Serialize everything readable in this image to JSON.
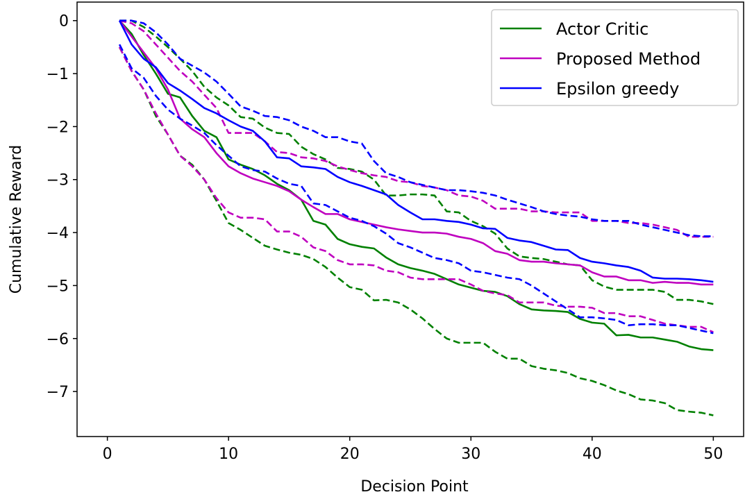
{
  "chart_data": {
    "type": "line",
    "title": "",
    "xlabel": "Decision Point",
    "ylabel": "Cumulative Reward",
    "xlim": [
      -2.5,
      52.5
    ],
    "ylim": [
      -7.85,
      0.35
    ],
    "x_ticks": [
      0,
      10,
      20,
      30,
      40,
      50
    ],
    "y_ticks": [
      0,
      -1,
      -2,
      -3,
      -4,
      -5,
      -6,
      -7
    ],
    "x_tick_labels": [
      "0",
      "10",
      "20",
      "30",
      "40",
      "50"
    ],
    "y_tick_labels": [
      "0",
      "−1",
      "−2",
      "−3",
      "−4",
      "−5",
      "−6",
      "−7"
    ],
    "grid": false,
    "legend_position": "top-right",
    "colors": {
      "actor_critic": "#008000",
      "proposed_method": "#bf00bf",
      "epsilon_greedy": "#0000ff",
      "axes": "#000000"
    },
    "x": [
      1,
      2,
      3,
      4,
      5,
      6,
      7,
      8,
      9,
      10,
      11,
      12,
      13,
      14,
      15,
      16,
      17,
      18,
      19,
      20,
      21,
      22,
      23,
      24,
      25,
      26,
      27,
      28,
      29,
      30,
      31,
      32,
      33,
      34,
      35,
      36,
      37,
      38,
      39,
      40,
      41,
      42,
      43,
      44,
      45,
      46,
      47,
      48,
      49,
      50
    ],
    "series": [
      {
        "name": "Actor Critic",
        "color_key": "actor_critic",
        "style": "solid",
        "legend": true,
        "values": [
          0,
          -0.25,
          -0.65,
          -1.0,
          -1.38,
          -1.45,
          -1.8,
          -2.08,
          -2.2,
          -2.62,
          -2.72,
          -2.8,
          -2.92,
          -3.08,
          -3.2,
          -3.38,
          -3.78,
          -3.85,
          -4.12,
          -4.22,
          -4.27,
          -4.3,
          -4.47,
          -4.6,
          -4.67,
          -4.72,
          -4.78,
          -4.88,
          -4.98,
          -5.04,
          -5.1,
          -5.12,
          -5.2,
          -5.35,
          -5.45,
          -5.47,
          -5.48,
          -5.5,
          -5.63,
          -5.7,
          -5.72,
          -5.94,
          -5.93,
          -5.98,
          -5.98,
          -6.02,
          -6.06,
          -6.15,
          -6.2,
          -6.22
        ]
      },
      {
        "name": "",
        "color_key": "actor_critic",
        "style": "dashed",
        "legend": false,
        "values": [
          0,
          0,
          -0.12,
          -0.3,
          -0.5,
          -0.72,
          -0.95,
          -1.25,
          -1.45,
          -1.6,
          -1.82,
          -1.85,
          -2.02,
          -2.12,
          -2.14,
          -2.38,
          -2.52,
          -2.62,
          -2.78,
          -2.8,
          -2.85,
          -3.0,
          -3.3,
          -3.3,
          -3.28,
          -3.28,
          -3.3,
          -3.6,
          -3.62,
          -3.78,
          -3.88,
          -4.02,
          -4.3,
          -4.45,
          -4.48,
          -4.5,
          -4.55,
          -4.6,
          -4.62,
          -4.9,
          -5.02,
          -5.08,
          -5.08,
          -5.08,
          -5.08,
          -5.12,
          -5.27,
          -5.27,
          -5.3,
          -5.35
        ]
      },
      {
        "name": "",
        "color_key": "actor_critic",
        "style": "dashed",
        "legend": false,
        "values": [
          -0.5,
          -0.95,
          -1.3,
          -1.8,
          -2.15,
          -2.55,
          -2.72,
          -3.0,
          -3.4,
          -3.82,
          -3.95,
          -4.1,
          -4.25,
          -4.32,
          -4.38,
          -4.42,
          -4.5,
          -4.65,
          -4.85,
          -5.03,
          -5.08,
          -5.28,
          -5.27,
          -5.32,
          -5.45,
          -5.62,
          -5.82,
          -6.0,
          -6.08,
          -6.08,
          -6.08,
          -6.25,
          -6.38,
          -6.38,
          -6.52,
          -6.57,
          -6.6,
          -6.65,
          -6.75,
          -6.8,
          -6.88,
          -6.98,
          -7.05,
          -7.15,
          -7.17,
          -7.22,
          -7.35,
          -7.38,
          -7.4,
          -7.45
        ]
      },
      {
        "name": "Proposed Method",
        "color_key": "proposed_method",
        "style": "solid",
        "legend": true,
        "values": [
          0,
          -0.3,
          -0.6,
          -0.9,
          -1.3,
          -1.85,
          -2.05,
          -2.2,
          -2.5,
          -2.75,
          -2.88,
          -2.98,
          -3.05,
          -3.12,
          -3.22,
          -3.38,
          -3.52,
          -3.65,
          -3.65,
          -3.75,
          -3.8,
          -3.85,
          -3.9,
          -3.94,
          -3.97,
          -4.0,
          -4.0,
          -4.02,
          -4.08,
          -4.12,
          -4.2,
          -4.35,
          -4.4,
          -4.52,
          -4.55,
          -4.55,
          -4.58,
          -4.6,
          -4.62,
          -4.75,
          -4.83,
          -4.83,
          -4.9,
          -4.9,
          -4.95,
          -4.93,
          -4.95,
          -4.95,
          -4.98,
          -4.98
        ]
      },
      {
        "name": "",
        "color_key": "proposed_method",
        "style": "dashed",
        "legend": false,
        "values": [
          0,
          -0.05,
          -0.2,
          -0.45,
          -0.7,
          -0.95,
          -1.15,
          -1.4,
          -1.65,
          -2.12,
          -2.12,
          -2.12,
          -2.28,
          -2.48,
          -2.5,
          -2.58,
          -2.6,
          -2.65,
          -2.75,
          -2.82,
          -2.88,
          -2.92,
          -2.95,
          -3.03,
          -3.05,
          -3.12,
          -3.15,
          -3.2,
          -3.3,
          -3.32,
          -3.4,
          -3.55,
          -3.55,
          -3.55,
          -3.6,
          -3.6,
          -3.62,
          -3.62,
          -3.62,
          -3.78,
          -3.78,
          -3.78,
          -3.82,
          -3.82,
          -3.85,
          -3.9,
          -3.95,
          -4.08,
          -4.08,
          -4.08
        ]
      },
      {
        "name": "",
        "color_key": "proposed_method",
        "style": "dashed",
        "legend": false,
        "values": [
          -0.5,
          -0.95,
          -1.3,
          -1.75,
          -2.15,
          -2.55,
          -2.75,
          -3.0,
          -3.35,
          -3.62,
          -3.72,
          -3.72,
          -3.75,
          -3.98,
          -3.98,
          -4.08,
          -4.28,
          -4.35,
          -4.52,
          -4.6,
          -4.6,
          -4.62,
          -4.72,
          -4.75,
          -4.85,
          -4.88,
          -4.88,
          -4.88,
          -4.88,
          -4.98,
          -5.1,
          -5.15,
          -5.18,
          -5.32,
          -5.32,
          -5.32,
          -5.38,
          -5.4,
          -5.4,
          -5.42,
          -5.52,
          -5.52,
          -5.58,
          -5.58,
          -5.65,
          -5.72,
          -5.75,
          -5.78,
          -5.78,
          -5.88
        ]
      },
      {
        "name": "Epsilon greedy",
        "color_key": "epsilon_greedy",
        "style": "solid",
        "legend": true,
        "values": [
          0,
          -0.45,
          -0.72,
          -0.88,
          -1.18,
          -1.32,
          -1.48,
          -1.65,
          -1.75,
          -1.88,
          -2.0,
          -2.08,
          -2.28,
          -2.58,
          -2.6,
          -2.75,
          -2.77,
          -2.8,
          -2.95,
          -3.05,
          -3.12,
          -3.2,
          -3.28,
          -3.48,
          -3.62,
          -3.75,
          -3.75,
          -3.78,
          -3.8,
          -3.85,
          -3.92,
          -3.93,
          -4.1,
          -4.15,
          -4.18,
          -4.25,
          -4.32,
          -4.33,
          -4.48,
          -4.55,
          -4.58,
          -4.62,
          -4.65,
          -4.72,
          -4.85,
          -4.87,
          -4.87,
          -4.88,
          -4.9,
          -4.93
        ]
      },
      {
        "name": "",
        "color_key": "epsilon_greedy",
        "style": "dashed",
        "legend": false,
        "values": [
          0,
          0,
          -0.05,
          -0.22,
          -0.45,
          -0.72,
          -0.85,
          -0.98,
          -1.15,
          -1.38,
          -1.62,
          -1.7,
          -1.8,
          -1.82,
          -1.88,
          -2.0,
          -2.08,
          -2.2,
          -2.2,
          -2.28,
          -2.32,
          -2.65,
          -2.88,
          -2.95,
          -3.05,
          -3.1,
          -3.15,
          -3.2,
          -3.2,
          -3.22,
          -3.25,
          -3.3,
          -3.38,
          -3.45,
          -3.52,
          -3.6,
          -3.65,
          -3.68,
          -3.7,
          -3.75,
          -3.78,
          -3.78,
          -3.78,
          -3.85,
          -3.9,
          -3.95,
          -4.0,
          -4.05,
          -4.07,
          -4.07
        ]
      },
      {
        "name": "",
        "color_key": "epsilon_greedy",
        "style": "dashed",
        "legend": false,
        "values": [
          -0.45,
          -0.9,
          -1.08,
          -1.42,
          -1.68,
          -1.85,
          -1.98,
          -2.12,
          -2.35,
          -2.55,
          -2.75,
          -2.82,
          -2.85,
          -2.98,
          -3.08,
          -3.12,
          -3.45,
          -3.48,
          -3.6,
          -3.72,
          -3.78,
          -3.88,
          -4.02,
          -4.2,
          -4.28,
          -4.38,
          -4.48,
          -4.52,
          -4.58,
          -4.72,
          -4.75,
          -4.8,
          -4.85,
          -4.88,
          -5.0,
          -5.15,
          -5.3,
          -5.45,
          -5.6,
          -5.6,
          -5.62,
          -5.65,
          -5.75,
          -5.73,
          -5.73,
          -5.75,
          -5.75,
          -5.8,
          -5.85,
          -5.9
        ]
      }
    ],
    "legend": [
      {
        "label": "Actor Critic",
        "color_key": "actor_critic"
      },
      {
        "label": "Proposed Method",
        "color_key": "proposed_method"
      },
      {
        "label": "Epsilon greedy",
        "color_key": "epsilon_greedy"
      }
    ]
  }
}
